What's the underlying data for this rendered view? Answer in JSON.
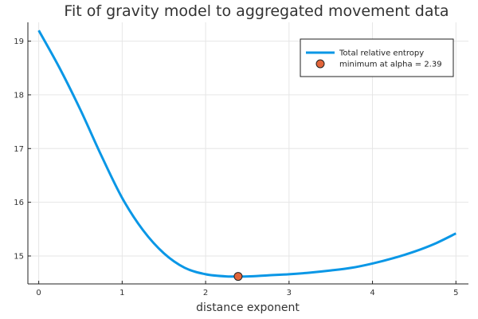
{
  "chart_data": {
    "type": "line",
    "title": "Fit of gravity model to aggregated movement data",
    "xlabel": "distance exponent",
    "ylabel": "",
    "xlim": [
      -0.13,
      5.15
    ],
    "ylim": [
      14.48,
      19.35
    ],
    "xticks": [
      0,
      1,
      2,
      3,
      4,
      5
    ],
    "yticks": [
      15,
      16,
      17,
      18,
      19
    ],
    "grid": true,
    "legend_position": "top-right",
    "series": [
      {
        "name": "Total relative entropy",
        "kind": "line",
        "color": "#0a97e6",
        "x": [
          0,
          0.25,
          0.5,
          0.75,
          1.0,
          1.25,
          1.5,
          1.75,
          2.0,
          2.25,
          2.5,
          2.75,
          3.0,
          3.25,
          3.5,
          3.75,
          4.0,
          4.25,
          4.5,
          4.75,
          5.0
        ],
        "y": [
          19.2,
          18.5,
          17.72,
          16.87,
          16.08,
          15.48,
          15.05,
          14.78,
          14.66,
          14.62,
          14.62,
          14.64,
          14.66,
          14.69,
          14.73,
          14.78,
          14.86,
          14.96,
          15.08,
          15.23,
          15.42
        ]
      },
      {
        "name": "minimum at alpha = 2.39",
        "kind": "scatter",
        "color": "#e2653a",
        "x": [
          2.39
        ],
        "y": [
          14.62
        ]
      }
    ]
  }
}
